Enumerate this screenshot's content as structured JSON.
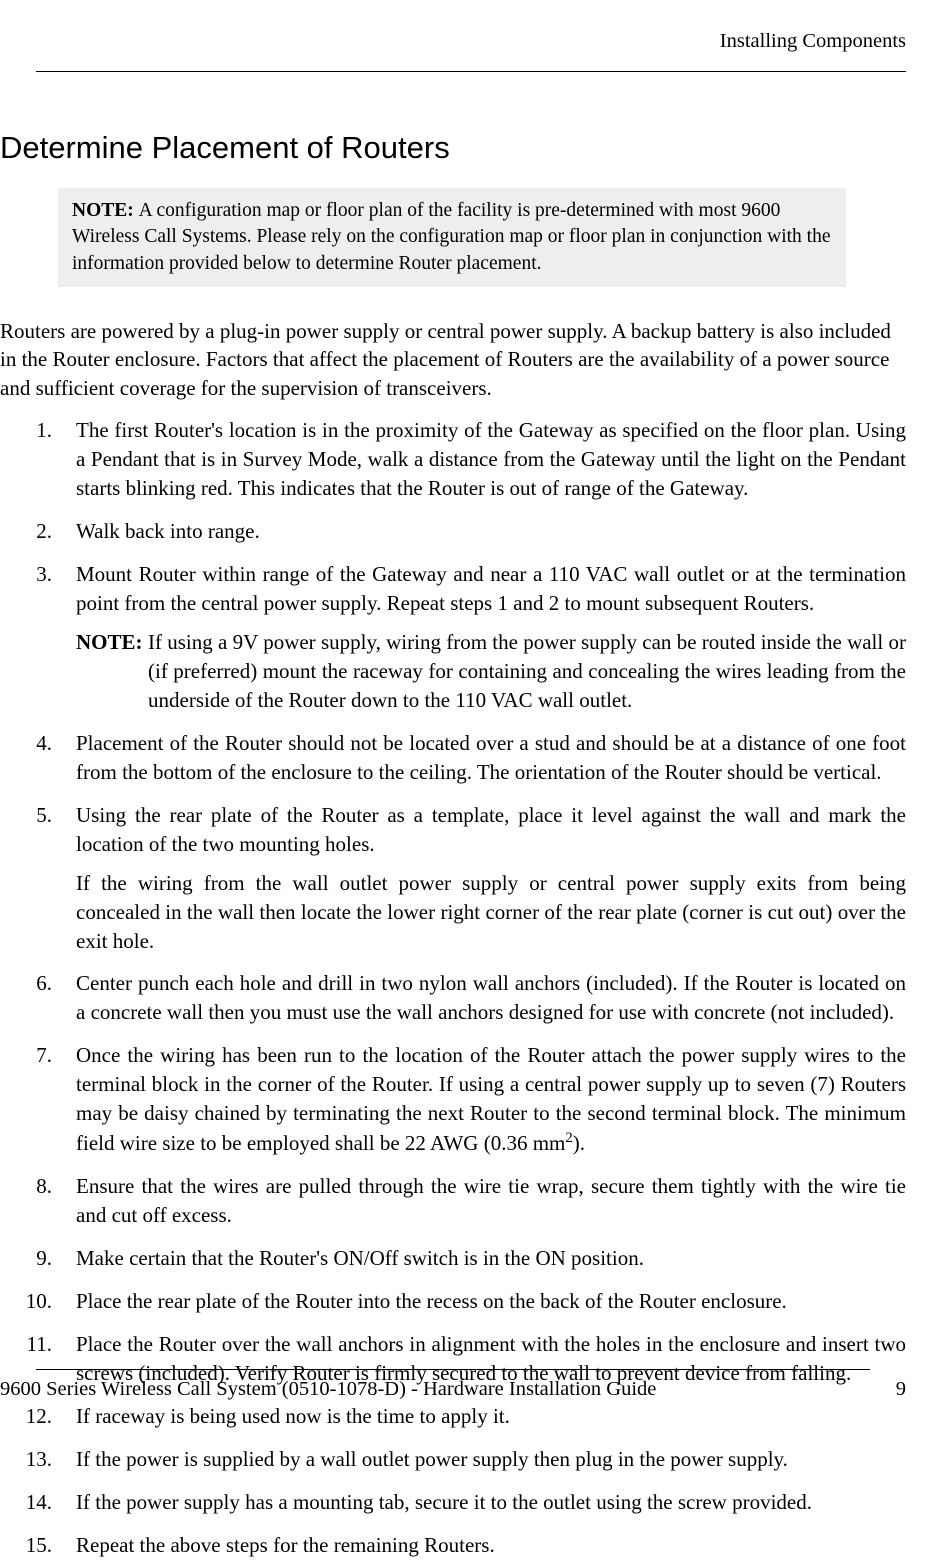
{
  "header_text": "Installing Components",
  "h1": "Determine Placement of Routers",
  "note_box": {
    "label": "NOTE: ",
    "text": "A configuration map or floor plan of the facility is pre-determined with most 9600 Wireless Call Systems. Please rely on the configuration map or floor plan in conjunction with the information provided below to determine Router placement."
  },
  "intro": "Routers are powered by a plug-in power supply or central power supply. A backup battery is also included in the Router enclosure. Factors that affect the placement of Routers are the availability of a power source and sufficient coverage for the supervision of transceivers.",
  "steps": [
    {
      "n": "1.",
      "t": "The first Router's location is in the proximity of the Gateway as specified on the floor plan. Using a Pendant that is in Survey Mode, walk a distance from the Gateway until the light on the Pendant starts blinking red. This indicates that the Router is out of range of the Gateway."
    },
    {
      "n": "2.",
      "t": "Walk back into range."
    },
    {
      "n": "3.",
      "t": "Mount Router within range of the Gateway and near a 110 VAC wall outlet or at the termination point from the central power supply. Repeat steps 1 and 2 to mount subsequent Routers.",
      "note": {
        "label": "NOTE: ",
        "text": "If using a 9V power supply, wiring from the power supply can be routed inside the wall or (if preferred) mount the raceway for containing and concealing the wires leading from the underside of the Router down to the 110 VAC wall outlet."
      }
    },
    {
      "n": "4.",
      "t": "Placement of the Router should not be located over a stud and should be at a distance of one foot from the bottom of the enclosure to the ceiling. The orientation of the Router should be vertical."
    },
    {
      "n": "5.",
      "t": "Using the rear plate of the Router as a template, place it level against the wall and mark the location of the two mounting holes.",
      "sub": "If the wiring from the wall outlet power supply or central power supply exits from being concealed in the wall then locate the lower right corner of the rear plate (corner is cut out) over the exit hole."
    },
    {
      "n": "6.",
      "t": "Center punch each hole and drill in two nylon wall anchors (included). If the Router is located on a concrete wall then you must use the wall anchors designed for use with concrete (not included)."
    },
    {
      "n": "7.",
      "t": "Once the wiring has been run to the location of the Router attach the power supply wires to the terminal block in the corner of the Router. If using a central power supply up to seven (7) Routers may be daisy chained by terminating the next Router to the second terminal block. The minimum field wire size to be employed shall be 22 AWG (0.36 mm",
      "sup": "2",
      "tail": ")."
    },
    {
      "n": "8.",
      "t": "Ensure that the wires are pulled through the wire tie wrap, secure them tightly with the wire tie and cut off excess."
    },
    {
      "n": "9.",
      "t": "Make certain that the Router's ON/Off switch is in the ON position."
    },
    {
      "n": "10.",
      "t": "Place the rear plate of the Router into the recess on the back of the Router enclosure."
    },
    {
      "n": "11.",
      "t": "Place the Router over the wall anchors in alignment with the holes in the enclosure and insert two screws (included). Verify Router is firmly secured to the wall to prevent device from falling."
    },
    {
      "n": "12.",
      "t": "If raceway is being used now is the time to apply it."
    },
    {
      "n": "13.",
      "t": "If the power is supplied by a wall outlet power supply then plug in the power supply."
    },
    {
      "n": "14.",
      "t": "If the power supply has a mounting tab, secure it to the outlet using the screw provided."
    },
    {
      "n": "15.",
      "t": "Repeat the above steps for the remaining Routers."
    }
  ],
  "footer_text": "9600 Series Wireless Call System (0510-1078-D) - Hardware Installation Guide",
  "page_number": "9"
}
